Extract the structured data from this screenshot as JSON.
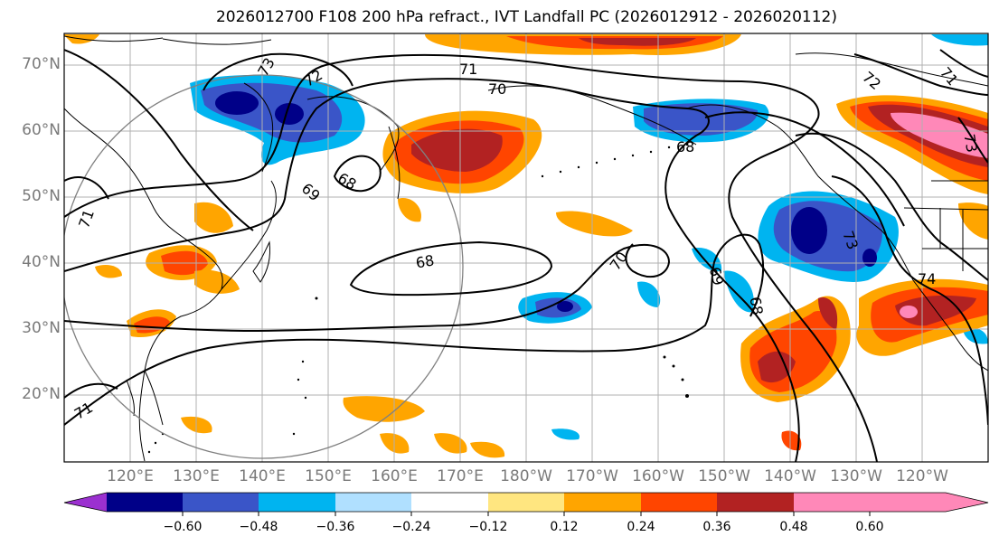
{
  "title": "2026012700 F108 200 hPa refract., IVT Landfall PC (2026012912 - 2026020112)",
  "lat_labels": [
    "70°N",
    "60°N",
    "50°N",
    "40°N",
    "30°N",
    "20°N"
  ],
  "lon_labels": [
    "120°E",
    "130°E",
    "140°E",
    "150°E",
    "160°E",
    "170°E",
    "180°W",
    "170°W",
    "160°W",
    "150°W",
    "140°W",
    "130°W",
    "120°W"
  ],
  "colorbar": {
    "labels": [
      "−0.60",
      "−0.48",
      "−0.36",
      "−0.24",
      "−0.12",
      "0.12",
      "0.24",
      "0.36",
      "0.48",
      "0.60"
    ],
    "colors": [
      "#9b30d0",
      "#000088",
      "#3a55c8",
      "#00b4f0",
      "#b0e0ff",
      "#ffffff",
      "#ffe680",
      "#ffa500",
      "#ff4500",
      "#b22222",
      "#ff88b8"
    ]
  },
  "contour_labels": [
    "73",
    "72",
    "71",
    "70",
    "69",
    "68",
    "68",
    "68",
    "70",
    "69",
    "68",
    "73",
    "74",
    "72",
    "73",
    "71",
    "71",
    "71"
  ]
}
